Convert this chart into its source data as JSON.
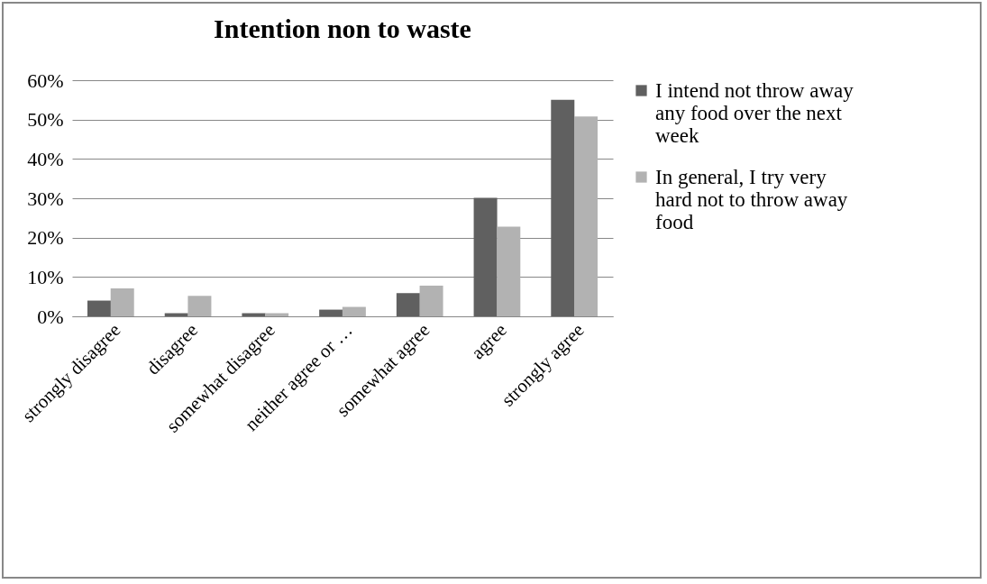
{
  "chart_data": {
    "type": "bar",
    "title": "Intention non to waste",
    "categories": [
      "strongly disagree",
      "disagree",
      "somewhat disagree",
      "neither agree or …",
      "somewhat agree",
      "agree",
      "strongly agree"
    ],
    "series": [
      {
        "name": "I intend not throw away any food over the next week",
        "color": "#606060",
        "values": [
          4.0,
          0.8,
          0.8,
          1.7,
          5.9,
          30.1,
          55.0
        ]
      },
      {
        "name": "In general, I  try very hard not to throw away food",
        "color": "#b2b2b2",
        "values": [
          7.1,
          5.2,
          0.8,
          2.4,
          7.8,
          22.8,
          50.8
        ]
      }
    ],
    "ylim": [
      0,
      60
    ],
    "yticks": [
      {
        "value": 0,
        "label": "0%"
      },
      {
        "value": 10,
        "label": "10%"
      },
      {
        "value": 20,
        "label": "20%"
      },
      {
        "value": 30,
        "label": "30%"
      },
      {
        "value": 40,
        "label": "40%"
      },
      {
        "value": 50,
        "label": "50%"
      },
      {
        "value": 60,
        "label": "60%"
      }
    ],
    "grid": "y",
    "legend": "right"
  }
}
